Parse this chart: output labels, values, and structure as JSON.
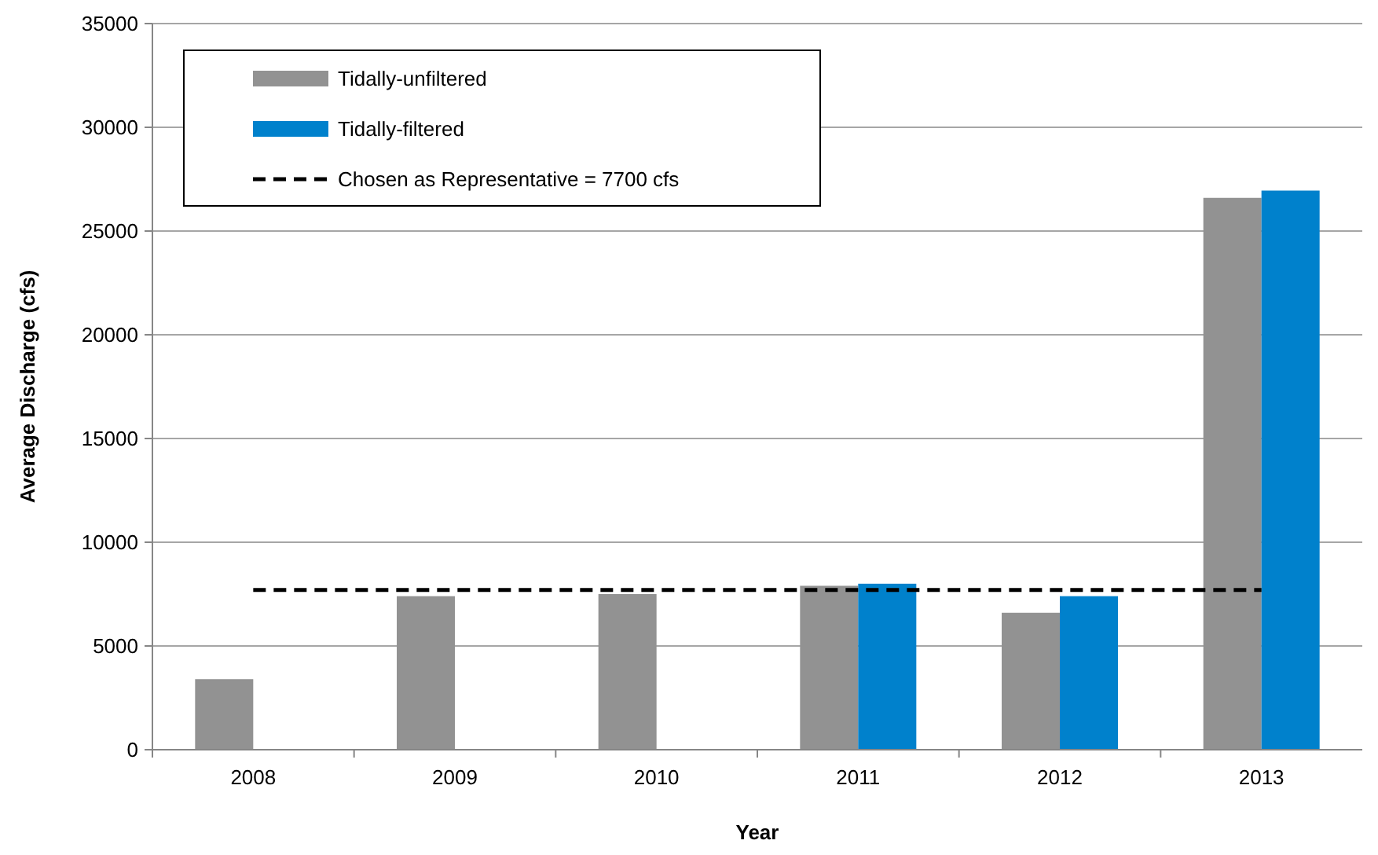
{
  "chart_data": {
    "type": "bar",
    "xlabel": "Year",
    "ylabel": "Average Discharge (cfs)",
    "categories": [
      "2008",
      "2009",
      "2010",
      "2011",
      "2012",
      "2013"
    ],
    "series": [
      {
        "name": "Tidally-unfiltered",
        "color": "#929292",
        "values": [
          3400,
          7400,
          7500,
          7900,
          6600,
          26600
        ]
      },
      {
        "name": "Tidally-filtered",
        "color": "#0081cc",
        "values": [
          null,
          null,
          null,
          8000,
          7400,
          26950
        ]
      },
      {
        "name": "Chosen as Representative = 7700 cfs",
        "type": "line",
        "color": "#000000",
        "line_style": "dashed",
        "marker": "none",
        "values": [
          7700,
          7700,
          7700,
          7700,
          7700,
          7700
        ]
      }
    ],
    "ylim": [
      0,
      35000
    ],
    "yticks": [
      0,
      5000,
      10000,
      15000,
      20000,
      25000,
      30000,
      35000
    ],
    "grid": "y",
    "legend": "top left"
  }
}
